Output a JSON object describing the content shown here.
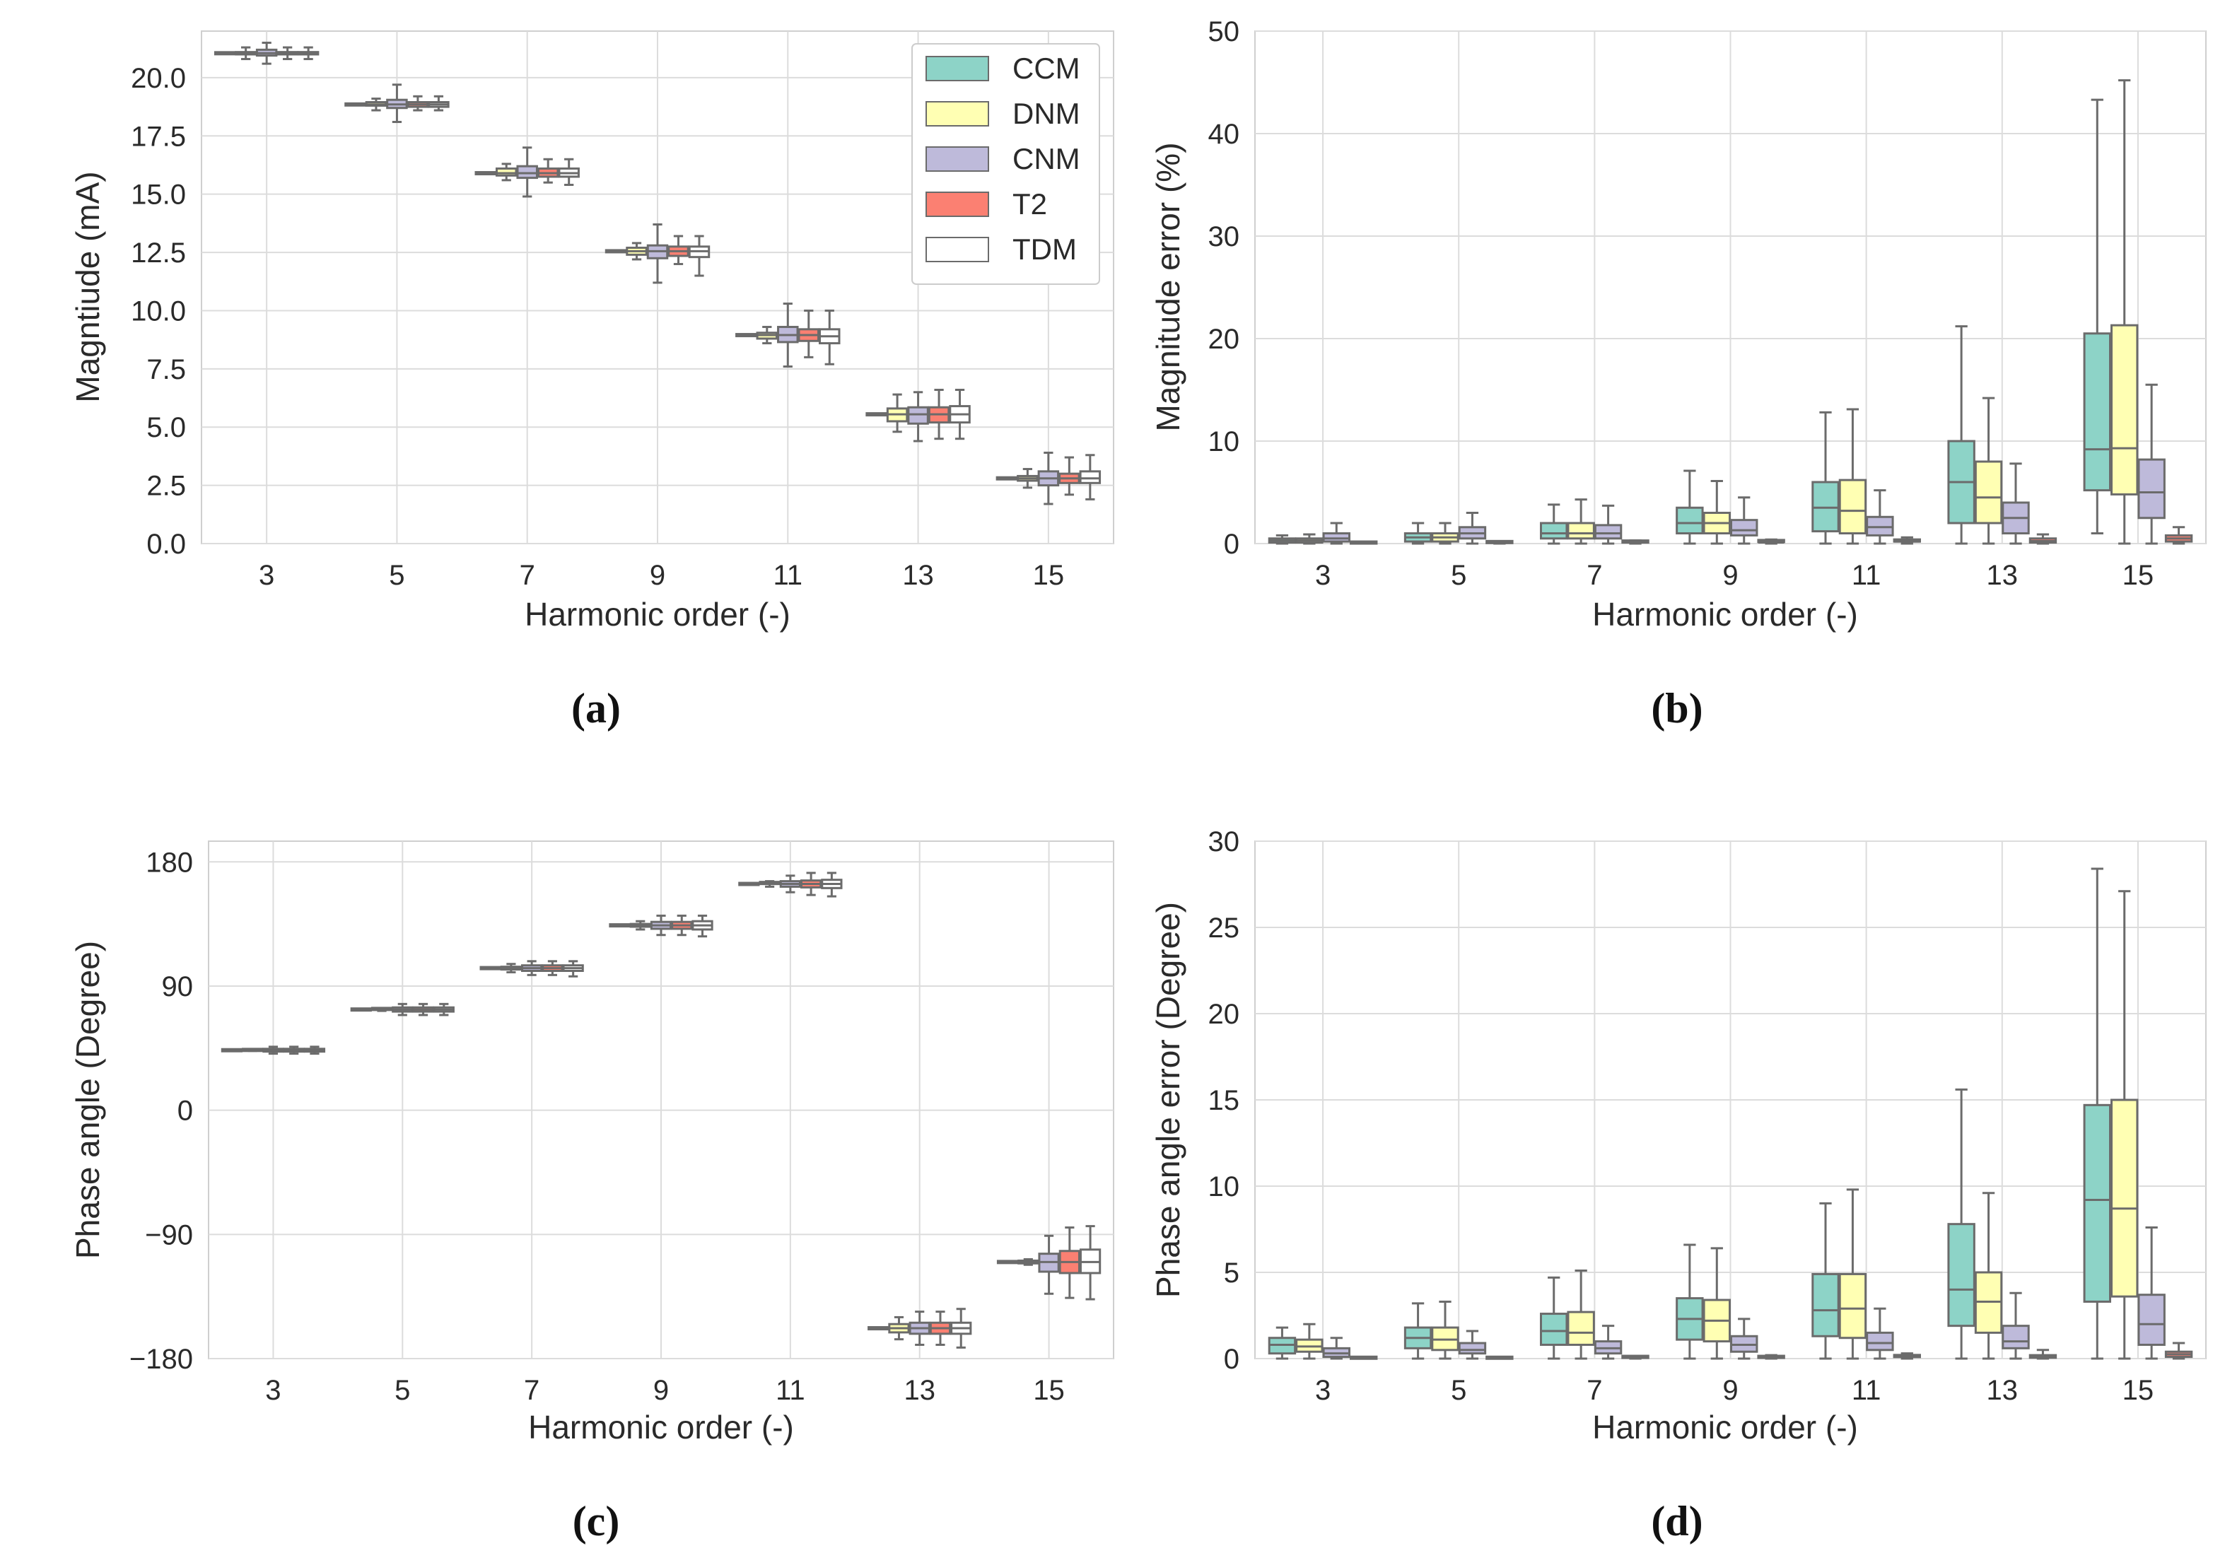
{
  "colors": {
    "CCM": "#8dd3c7",
    "DNM": "#ffffb3",
    "CNM": "#bebada",
    "T2": "#fb8072",
    "TDM": "#ffffff",
    "edge": "#6b6b6b",
    "grid": "#dcdcdc"
  },
  "legend": {
    "entries": [
      "CCM",
      "DNM",
      "CNM",
      "T2",
      "TDM"
    ]
  },
  "chart_data": [
    {
      "id": "a",
      "type": "box",
      "caption": "(a)",
      "title": "",
      "xlabel": "Harmonic order (-)",
      "ylabel": "Magntiude (mA)",
      "ylim": [
        0,
        22
      ],
      "yticks": [
        0.0,
        2.5,
        5.0,
        7.5,
        10.0,
        12.5,
        15.0,
        17.5,
        20.0
      ],
      "ytick_labels": [
        "0.0",
        "2.5",
        "5.0",
        "7.5",
        "10.0",
        "12.5",
        "15.0",
        "17.5",
        "20.0"
      ],
      "categories": [
        "3",
        "5",
        "7",
        "9",
        "11",
        "13",
        "15"
      ],
      "legend": true,
      "series": [
        {
          "name": "CCM",
          "boxes": [
            [
              21.05,
              21.05,
              21.05,
              21.05,
              21.05
            ],
            [
              18.85,
              18.85,
              18.85,
              18.85,
              18.85
            ],
            [
              15.9,
              15.9,
              15.9,
              15.9,
              15.9
            ],
            [
              12.55,
              12.55,
              12.55,
              12.55,
              12.55
            ],
            [
              8.95,
              8.95,
              8.95,
              8.95,
              8.95
            ],
            [
              5.55,
              5.55,
              5.55,
              5.55,
              5.55
            ],
            [
              2.8,
              2.8,
              2.8,
              2.8,
              2.8
            ]
          ]
        },
        {
          "name": "DNM",
          "boxes": [
            [
              20.8,
              21.0,
              21.05,
              21.1,
              21.3
            ],
            [
              18.6,
              18.8,
              18.85,
              18.95,
              19.1
            ],
            [
              15.6,
              15.8,
              15.9,
              16.1,
              16.3
            ],
            [
              12.2,
              12.4,
              12.55,
              12.7,
              12.9
            ],
            [
              8.6,
              8.8,
              8.95,
              9.05,
              9.3
            ],
            [
              4.8,
              5.25,
              5.55,
              5.8,
              6.4
            ],
            [
              2.4,
              2.7,
              2.8,
              2.9,
              3.2
            ]
          ]
        },
        {
          "name": "CNM",
          "boxes": [
            [
              20.6,
              20.95,
              21.05,
              21.2,
              21.5
            ],
            [
              18.1,
              18.7,
              18.85,
              19.05,
              19.7
            ],
            [
              14.9,
              15.7,
              15.9,
              16.2,
              17.0
            ],
            [
              11.2,
              12.25,
              12.55,
              12.8,
              13.7
            ],
            [
              7.6,
              8.65,
              8.95,
              9.3,
              10.3
            ],
            [
              4.4,
              5.15,
              5.55,
              5.85,
              6.5
            ],
            [
              1.7,
              2.5,
              2.8,
              3.1,
              3.9
            ]
          ]
        },
        {
          "name": "T2",
          "boxes": [
            [
              20.8,
              21.0,
              21.05,
              21.1,
              21.3
            ],
            [
              18.6,
              18.75,
              18.85,
              18.95,
              19.2
            ],
            [
              15.5,
              15.75,
              15.9,
              16.1,
              16.5
            ],
            [
              12.0,
              12.35,
              12.55,
              12.75,
              13.2
            ],
            [
              8.0,
              8.7,
              8.95,
              9.2,
              10.0
            ],
            [
              4.5,
              5.2,
              5.55,
              5.85,
              6.6
            ],
            [
              2.1,
              2.6,
              2.8,
              3.0,
              3.7
            ]
          ]
        },
        {
          "name": "TDM",
          "boxes": [
            [
              20.8,
              21.0,
              21.05,
              21.1,
              21.3
            ],
            [
              18.6,
              18.75,
              18.85,
              18.95,
              19.2
            ],
            [
              15.4,
              15.75,
              15.9,
              16.1,
              16.5
            ],
            [
              11.5,
              12.3,
              12.55,
              12.75,
              13.2
            ],
            [
              7.7,
              8.6,
              8.9,
              9.2,
              10.0
            ],
            [
              4.5,
              5.2,
              5.55,
              5.9,
              6.6
            ],
            [
              1.9,
              2.6,
              2.8,
              3.1,
              3.8
            ]
          ]
        }
      ]
    },
    {
      "id": "b",
      "type": "box",
      "caption": "(b)",
      "title": "",
      "xlabel": "Harmonic order (-)",
      "ylabel": "Magnitude error (%)",
      "ylim": [
        0,
        50
      ],
      "yticks": [
        0,
        10,
        20,
        30,
        40,
        50
      ],
      "ytick_labels": [
        "0",
        "10",
        "20",
        "30",
        "40",
        "50"
      ],
      "categories": [
        "3",
        "5",
        "7",
        "9",
        "11",
        "13",
        "15"
      ],
      "legend": false,
      "series": [
        {
          "name": "CCM",
          "boxes": [
            [
              0,
              0.1,
              0.3,
              0.5,
              0.8
            ],
            [
              0,
              0.2,
              0.6,
              1.0,
              2.0
            ],
            [
              0,
              0.5,
              1.0,
              2.0,
              3.8
            ],
            [
              0,
              1.0,
              2.0,
              3.5,
              7.1
            ],
            [
              0,
              1.2,
              3.5,
              6.0,
              12.8
            ],
            [
              0,
              2.0,
              6.0,
              10.0,
              21.2
            ],
            [
              1.0,
              5.2,
              9.2,
              20.5,
              43.3
            ]
          ]
        },
        {
          "name": "DNM",
          "boxes": [
            [
              0,
              0.1,
              0.3,
              0.5,
              0.9
            ],
            [
              0,
              0.2,
              0.6,
              1.0,
              2.0
            ],
            [
              0,
              0.5,
              1.0,
              2.0,
              4.3
            ],
            [
              0,
              1.0,
              2.0,
              3.0,
              6.1
            ],
            [
              0,
              1.0,
              3.2,
              6.2,
              13.1
            ],
            [
              0,
              2.0,
              4.5,
              8.0,
              14.2
            ],
            [
              0,
              4.8,
              9.3,
              21.3,
              45.2
            ]
          ]
        },
        {
          "name": "CNM",
          "boxes": [
            [
              0,
              0.2,
              0.5,
              1.0,
              2.0
            ],
            [
              0,
              0.5,
              1.0,
              1.6,
              3.0
            ],
            [
              0,
              0.5,
              1.0,
              1.8,
              3.7
            ],
            [
              0,
              0.8,
              1.3,
              2.3,
              4.5
            ],
            [
              0,
              0.8,
              1.6,
              2.6,
              5.2
            ],
            [
              0,
              1.0,
              2.5,
              4.0,
              7.8
            ],
            [
              0,
              2.5,
              5.0,
              8.2,
              15.5
            ]
          ]
        },
        {
          "name": "T2",
          "boxes": [
            [
              0,
              0,
              0.05,
              0.1,
              0.1
            ],
            [
              0,
              0.05,
              0.1,
              0.15,
              0.2
            ],
            [
              0,
              0.05,
              0.1,
              0.2,
              0.3
            ],
            [
              0,
              0.05,
              0.1,
              0.25,
              0.4
            ],
            [
              0,
              0.1,
              0.2,
              0.3,
              0.6
            ],
            [
              0,
              0.1,
              0.25,
              0.5,
              0.9
            ],
            [
              0,
              0.2,
              0.5,
              0.8,
              1.6
            ]
          ]
        }
      ]
    },
    {
      "id": "c",
      "type": "box",
      "caption": "(c)",
      "title": "",
      "xlabel": "Harmonic order (-)",
      "ylabel": "Phase angle (Degree)",
      "ylim": [
        -180,
        195
      ],
      "yticks": [
        -180,
        -90,
        0,
        90,
        180
      ],
      "ytick_labels": [
        "−180",
        "−90",
        "0",
        "90",
        "180"
      ],
      "categories": [
        "3",
        "5",
        "7",
        "9",
        "11",
        "13",
        "15"
      ],
      "legend": false,
      "series": [
        {
          "name": "CCM",
          "boxes": [
            [
              43.5,
              43.5,
              43.5,
              43.5,
              43.5
            ],
            [
              73,
              73,
              73,
              73,
              73
            ],
            [
              103,
              103,
              103,
              103,
              103
            ],
            [
              134,
              134,
              134,
              134,
              134
            ],
            [
              164,
              164,
              164,
              164,
              164
            ],
            [
              -158,
              -158,
              -158,
              -158,
              -158
            ],
            [
              -110,
              -110,
              -110,
              -110,
              -110
            ]
          ]
        },
        {
          "name": "DNM",
          "boxes": [
            [
              43,
              43.3,
              43.5,
              43.7,
              44
            ],
            [
              72,
              72.6,
              73,
              73.4,
              74
            ],
            [
              100,
              102,
              103,
              104,
              106
            ],
            [
              131,
              133,
              134,
              135,
              137
            ],
            [
              162,
              163.3,
              164,
              164.7,
              166
            ],
            [
              -166,
              -161,
              -158,
              -155,
              -150
            ],
            [
              -112,
              -111,
              -110,
              -109,
              -108
            ]
          ]
        },
        {
          "name": "CNM",
          "boxes": [
            [
              41,
              42.5,
              43.5,
              44.5,
              46
            ],
            [
              69,
              71.5,
              73,
              74.5,
              77
            ],
            [
              98,
              101,
              103,
              105,
              108
            ],
            [
              127,
              131.5,
              134,
              136.5,
              141
            ],
            [
              158,
              162,
              164,
              166,
              170
            ],
            [
              -170,
              -162,
              -158,
              -154,
              -146
            ],
            [
              -133,
              -117,
              -110,
              -104,
              -91
            ]
          ]
        },
        {
          "name": "T2",
          "boxes": [
            [
              41,
              42.5,
              43.5,
              44.5,
              46
            ],
            [
              69,
              71.5,
              73,
              74.5,
              77
            ],
            [
              98,
              101,
              103,
              105,
              108
            ],
            [
              127,
              131.5,
              134,
              136.5,
              141
            ],
            [
              156,
              161.5,
              164,
              166.5,
              172
            ],
            [
              -170,
              -162,
              -158,
              -154,
              -146
            ],
            [
              -136,
              -118,
              -110,
              -102,
              -85
            ]
          ]
        },
        {
          "name": "TDM",
          "boxes": [
            [
              41,
              42.5,
              43.5,
              44.5,
              46
            ],
            [
              69,
              71.5,
              73,
              74.5,
              77
            ],
            [
              97,
              101,
              103,
              105,
              108
            ],
            [
              126,
              131,
              134,
              137,
              141
            ],
            [
              155,
              161,
              164,
              167,
              172
            ],
            [
              -172,
              -162,
              -158,
              -154,
              -144
            ],
            [
              -137,
              -118,
              -110,
              -101,
              -84
            ]
          ]
        }
      ]
    },
    {
      "id": "d",
      "type": "box",
      "caption": "(d)",
      "title": "",
      "xlabel": "Harmonic order (-)",
      "ylabel": "Phase angle error (Degree)",
      "ylim": [
        0,
        30
      ],
      "yticks": [
        0,
        5,
        10,
        15,
        20,
        25,
        30
      ],
      "ytick_labels": [
        "0",
        "5",
        "10",
        "15",
        "20",
        "25",
        "30"
      ],
      "categories": [
        "3",
        "5",
        "7",
        "9",
        "11",
        "13",
        "15"
      ],
      "legend": false,
      "series": [
        {
          "name": "CCM",
          "boxes": [
            [
              0,
              0.3,
              0.8,
              1.2,
              1.8
            ],
            [
              0,
              0.6,
              1.2,
              1.8,
              3.2
            ],
            [
              0,
              0.8,
              1.6,
              2.6,
              4.7
            ],
            [
              0,
              1.1,
              2.3,
              3.5,
              6.6
            ],
            [
              0,
              1.3,
              2.8,
              4.9,
              9.0
            ],
            [
              0,
              1.9,
              4.0,
              7.8,
              15.6
            ],
            [
              0,
              3.3,
              9.2,
              14.7,
              28.4
            ]
          ]
        },
        {
          "name": "DNM",
          "boxes": [
            [
              0,
              0.4,
              0.7,
              1.1,
              2.0
            ],
            [
              0,
              0.5,
              1.1,
              1.8,
              3.3
            ],
            [
              0,
              0.8,
              1.5,
              2.7,
              5.1
            ],
            [
              0,
              1.0,
              2.2,
              3.4,
              6.4
            ],
            [
              0,
              1.2,
              2.9,
              4.9,
              9.8
            ],
            [
              0,
              1.5,
              3.3,
              5.0,
              9.6
            ],
            [
              0,
              3.6,
              8.7,
              15.0,
              27.1
            ]
          ]
        },
        {
          "name": "CNM",
          "boxes": [
            [
              0,
              0.1,
              0.3,
              0.6,
              1.2
            ],
            [
              0,
              0.3,
              0.5,
              0.9,
              1.6
            ],
            [
              0,
              0.3,
              0.6,
              1.0,
              1.9
            ],
            [
              0,
              0.4,
              0.8,
              1.3,
              2.3
            ],
            [
              0,
              0.5,
              0.9,
              1.5,
              2.9
            ],
            [
              0,
              0.6,
              1.0,
              1.9,
              3.8
            ],
            [
              0,
              0.8,
              2.0,
              3.7,
              7.6
            ]
          ]
        },
        {
          "name": "T2",
          "boxes": [
            [
              0,
              0,
              0.05,
              0.05,
              0.1
            ],
            [
              0,
              0,
              0.05,
              0.05,
              0.1
            ],
            [
              0,
              0,
              0.05,
              0.1,
              0.1
            ],
            [
              0,
              0,
              0.05,
              0.1,
              0.2
            ],
            [
              0,
              0.05,
              0.1,
              0.15,
              0.3
            ],
            [
              0,
              0.05,
              0.1,
              0.2,
              0.5
            ],
            [
              0,
              0.1,
              0.25,
              0.4,
              0.9
            ]
          ]
        }
      ]
    }
  ]
}
